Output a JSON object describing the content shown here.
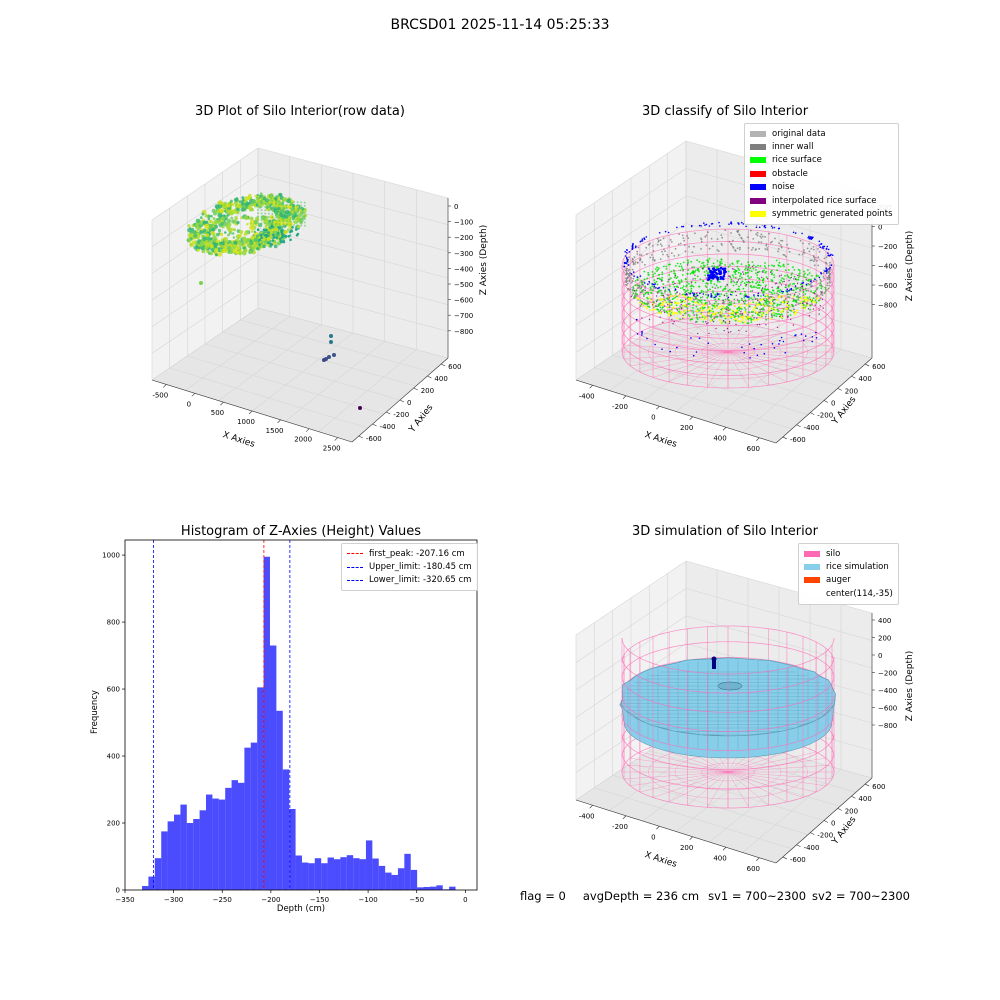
{
  "figure_title": "BRCSD01 2025-11-14 05:25:33",
  "panels": {
    "raw": {
      "title": "3D Plot of Silo Interior(row data)",
      "xlabel": "X Axies",
      "ylabel": "Y Axies",
      "zlabel": "Z Axies (Depth)",
      "x_ticks": [
        "-500",
        "0",
        "500",
        "1000",
        "1500",
        "2000",
        "2500"
      ],
      "y_ticks": [
        "-600",
        "-400",
        "-200",
        "0",
        "200",
        "400",
        "600"
      ],
      "z_ticks": [
        "0",
        "−100",
        "−200",
        "−300",
        "−400",
        "−500",
        "−600",
        "−700",
        "−800"
      ]
    },
    "classify": {
      "title": "3D classify of Silo Interior",
      "xlabel": "X Axies",
      "ylabel": "Y Axies",
      "zlabel": "Z Axies (Depth)",
      "x_ticks": [
        "-400",
        "-200",
        "0",
        "200",
        "400",
        "600"
      ],
      "y_ticks": [
        "-600",
        "-400",
        "-200",
        "0",
        "200",
        "400",
        "600"
      ],
      "z_ticks": [
        "200",
        "0",
        "−200",
        "−400",
        "−600",
        "−800"
      ],
      "legend": [
        {
          "label": "original data",
          "color": "#b3b3b3"
        },
        {
          "label": "inner wall",
          "color": "#7f7f7f"
        },
        {
          "label": "rice surface",
          "color": "#00ff00"
        },
        {
          "label": "obstacle",
          "color": "#ff0000"
        },
        {
          "label": "noise",
          "color": "#0000ff"
        },
        {
          "label": "interpolated rice surface",
          "color": "#800080"
        },
        {
          "label": "symmetric generated points",
          "color": "#ffff00"
        }
      ]
    },
    "histogram": {
      "title": "Histogram of Z-Axies (Height) Values",
      "xlabel": "Depth (cm)",
      "ylabel": "Frequency",
      "legend": [
        {
          "label": "first_peak: -207.16 cm",
          "color": "#ff0000"
        },
        {
          "label": "Upper_limit: -180.45 cm",
          "color": "#0000ff"
        },
        {
          "label": "Lower_limit: -320.65 cm",
          "color": "#0000ff"
        }
      ]
    },
    "simulation": {
      "title": "3D simulation of Silo Interior",
      "xlabel": "X Axies",
      "ylabel": "Y Axies",
      "zlabel": "Z Axies (Depth)",
      "x_ticks": [
        "-400",
        "-200",
        "0",
        "200",
        "400",
        "600"
      ],
      "y_ticks": [
        "-600",
        "-400",
        "-200",
        "0",
        "200",
        "400",
        "600"
      ],
      "z_ticks": [
        "400",
        "200",
        "0",
        "−200",
        "−400",
        "−600",
        "−800"
      ],
      "legend": [
        {
          "label": "silo",
          "color": "#ff69b4"
        },
        {
          "label": "rice simulation",
          "color": "#87ceeb"
        },
        {
          "label": "auger",
          "color": "#ff4500"
        },
        {
          "label": "center(114,-35)",
          "color": ""
        }
      ]
    }
  },
  "footer": {
    "flag": "flag = 0",
    "avg_depth": "avgDepth = 236 cm",
    "sv1": "sv1 = 700~2300",
    "sv2": "sv2 = 700~2300"
  },
  "chart_data": [
    {
      "type": "scatter",
      "title": "3D Plot of Silo Interior(row data)",
      "xlabel": "X Axies",
      "ylabel": "Y Axies",
      "zlabel": "Z Axies (Depth)",
      "xlim": [
        -600,
        2700
      ],
      "ylim": [
        -700,
        700
      ],
      "zlim": [
        -850,
        30
      ]
    },
    {
      "type": "scatter",
      "title": "3D classify of Silo Interior",
      "xlabel": "X Axies",
      "ylabel": "Y Axies",
      "zlabel": "Z Axies (Depth)",
      "xlim": [
        -500,
        700
      ],
      "ylim": [
        -650,
        650
      ],
      "zlim": [
        -900,
        300
      ],
      "series": [
        {
          "name": "original data"
        },
        {
          "name": "inner wall"
        },
        {
          "name": "rice surface"
        },
        {
          "name": "obstacle"
        },
        {
          "name": "noise"
        },
        {
          "name": "interpolated rice surface"
        },
        {
          "name": "symmetric generated points"
        }
      ]
    },
    {
      "type": "bar",
      "title": "Histogram of Z-Axies (Height) Values",
      "xlabel": "Depth (cm)",
      "ylabel": "Frequency",
      "xlim": [
        -350,
        12
      ],
      "ylim": [
        0,
        1045
      ],
      "x_ticks": [
        -350,
        -300,
        -250,
        -200,
        -150,
        -100,
        -50,
        0
      ],
      "y_ticks": [
        0,
        200,
        400,
        600,
        800,
        1000
      ],
      "bin_width": 6.58,
      "bin_start": -332.5,
      "values": [
        12,
        40,
        95,
        175,
        205,
        225,
        255,
        200,
        212,
        238,
        285,
        273,
        270,
        305,
        328,
        320,
        425,
        440,
        605,
        995,
        730,
        535,
        360,
        242,
        103,
        82,
        80,
        95,
        80,
        97,
        92,
        98,
        104,
        95,
        92,
        148,
        94,
        72,
        52,
        45,
        65,
        108,
        60,
        8,
        9,
        10,
        14,
        2,
        10
      ],
      "vlines": [
        {
          "name": "first_peak: -207.16 cm",
          "x": -207.16,
          "color": "#ff0000"
        },
        {
          "name": "Upper_limit: -180.45 cm",
          "x": -180.45,
          "color": "#0000ff"
        },
        {
          "name": "Lower_limit: -320.65 cm",
          "x": -320.65,
          "color": "#0000ff"
        }
      ],
      "legend_position": "top-right"
    },
    {
      "type": "scatter",
      "title": "3D simulation of Silo Interior",
      "xlabel": "X Axies",
      "ylabel": "Y Axies",
      "zlabel": "Z Axies (Depth)",
      "xlim": [
        -500,
        700
      ],
      "ylim": [
        -650,
        650
      ],
      "zlim": [
        -900,
        450
      ],
      "series": [
        {
          "name": "silo"
        },
        {
          "name": "rice simulation"
        },
        {
          "name": "auger"
        },
        {
          "name": "center(114,-35)"
        }
      ]
    }
  ]
}
